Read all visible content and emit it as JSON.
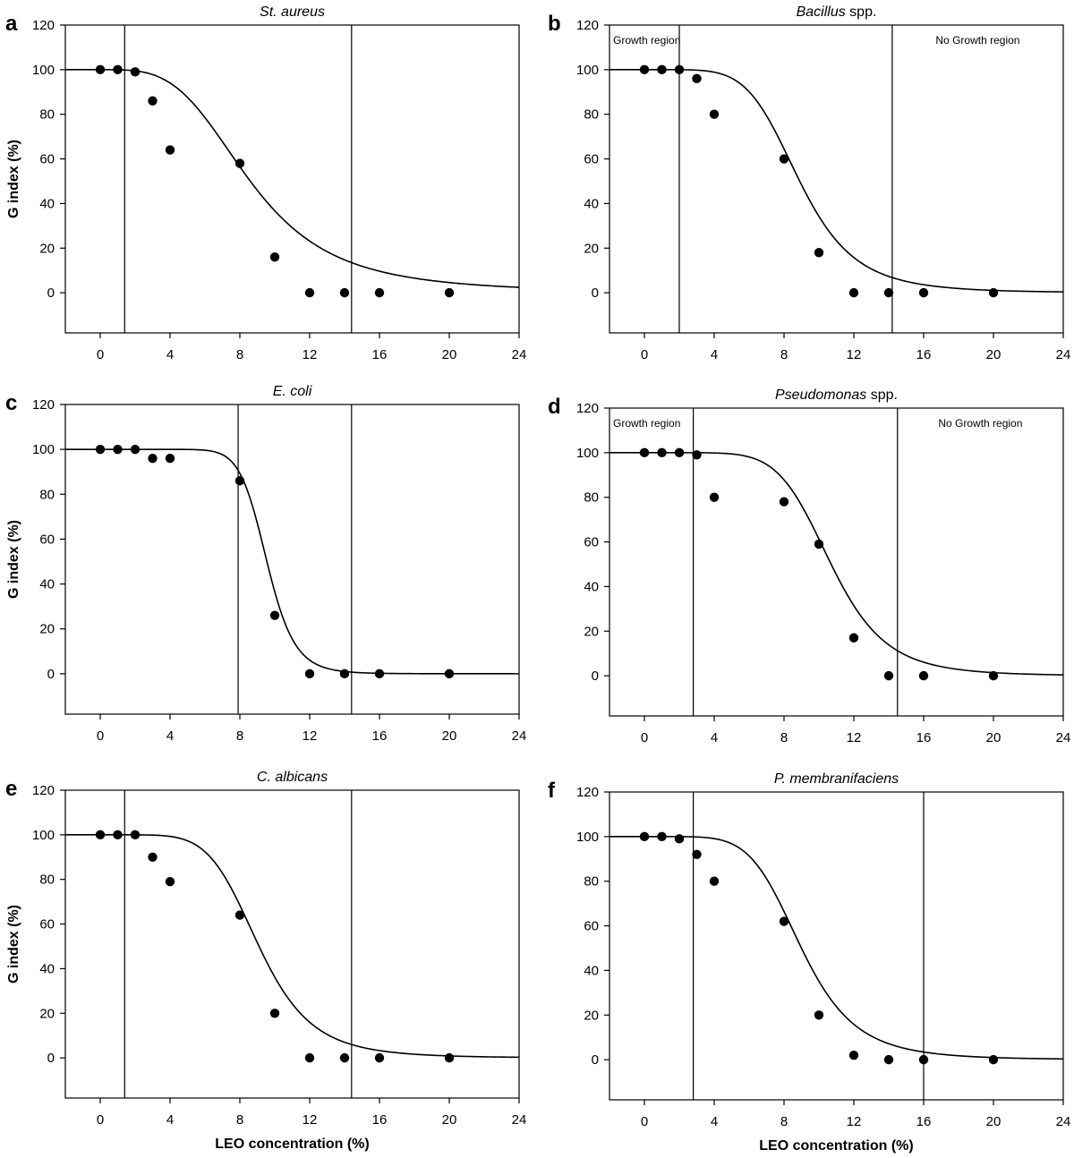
{
  "figure": {
    "panels": [
      {
        "letter": "a",
        "title_parts": [
          {
            "text": "St. aureus",
            "italic": true
          }
        ],
        "ylabel": "G index (%)",
        "xlabel": "",
        "region_left": "",
        "region_right": "",
        "vlines": [
          1.4,
          14.4
        ],
        "curve": {
          "top": 100,
          "x50": 8.6,
          "slope": 3.6
        }
      },
      {
        "letter": "b",
        "title_parts": [
          {
            "text": "Bacillus",
            "italic": true
          },
          {
            "text": " spp.",
            "italic": false
          }
        ],
        "ylabel": "",
        "xlabel": "",
        "region_left": "Growth region",
        "region_right": "No Growth region",
        "vlines": [
          2.0,
          14.2
        ],
        "curve": {
          "top": 100,
          "x50": 8.9,
          "slope": 5.6
        }
      },
      {
        "letter": "c",
        "title_parts": [
          {
            "text": "E. coli",
            "italic": true
          }
        ],
        "ylabel": "G index (%)",
        "xlabel": "",
        "region_left": "",
        "region_right": "",
        "vlines": [
          7.9,
          14.4
        ],
        "curve": {
          "top": 100,
          "x50": 9.55,
          "slope": 12
        }
      },
      {
        "letter": "d",
        "title_parts": [
          {
            "text": "Pseudomonas",
            "italic": true
          },
          {
            "text": " spp.",
            "italic": false
          }
        ],
        "ylabel": "",
        "xlabel": "",
        "region_left": "Growth region",
        "region_right": "No Growth region",
        "vlines": [
          2.8,
          14.5
        ],
        "curve": {
          "top": 100,
          "x50": 10.7,
          "slope": 6.8
        }
      },
      {
        "letter": "e",
        "title_parts": [
          {
            "text": "C. albicans",
            "italic": true
          }
        ],
        "ylabel": "G index (%)",
        "xlabel": "LEO concentration (%)",
        "region_left": "",
        "region_right": "",
        "vlines": [
          1.4,
          14.4
        ],
        "curve": {
          "top": 100,
          "x50": 9.1,
          "slope": 6
        }
      },
      {
        "letter": "f",
        "title_parts": [
          {
            "text": "P. membranifaciens",
            "italic": true
          }
        ],
        "ylabel": "",
        "xlabel": "LEO concentration (%)",
        "region_left": "",
        "region_right": "",
        "vlines": [
          2.8,
          16.0
        ],
        "curve": {
          "top": 100,
          "x50": 9.0,
          "slope": 5.8
        }
      }
    ]
  },
  "chart_data": [
    {
      "type": "scatter",
      "title": "St. aureus",
      "xlabel": "",
      "ylabel": "G index (%)",
      "xlim": [
        -2,
        24
      ],
      "ylim": [
        -18,
        120
      ],
      "xticks": [
        0,
        4,
        8,
        12,
        16,
        20,
        24
      ],
      "yticks": [
        0,
        20,
        40,
        60,
        80,
        100,
        120
      ],
      "x": [
        0,
        1,
        2,
        3,
        4,
        8,
        10,
        12,
        14,
        16,
        20
      ],
      "y": [
        100,
        100,
        99,
        86,
        64,
        58,
        16,
        0,
        0,
        0,
        0
      ],
      "grid": false
    },
    {
      "type": "scatter",
      "title": "Bacillus spp.",
      "xlabel": "",
      "ylabel": "",
      "xlim": [
        -2,
        24
      ],
      "ylim": [
        -18,
        120
      ],
      "xticks": [
        0,
        4,
        8,
        12,
        16,
        20,
        24
      ],
      "yticks": [
        0,
        20,
        40,
        60,
        80,
        100,
        120
      ],
      "x": [
        0,
        1,
        2,
        3,
        4,
        8,
        10,
        12,
        14,
        16,
        20
      ],
      "y": [
        100,
        100,
        100,
        96,
        80,
        60,
        18,
        0,
        0,
        0,
        0
      ],
      "grid": false
    },
    {
      "type": "scatter",
      "title": "E. coli",
      "xlabel": "",
      "ylabel": "G index (%)",
      "xlim": [
        -2,
        24
      ],
      "ylim": [
        -18,
        120
      ],
      "xticks": [
        0,
        4,
        8,
        12,
        16,
        20,
        24
      ],
      "yticks": [
        0,
        20,
        40,
        60,
        80,
        100,
        120
      ],
      "x": [
        0,
        1,
        2,
        3,
        4,
        8,
        10,
        12,
        14,
        16,
        20
      ],
      "y": [
        100,
        100,
        100,
        96,
        96,
        86,
        26,
        0,
        0,
        0,
        0
      ],
      "grid": false
    },
    {
      "type": "scatter",
      "title": "Pseudomonas spp.",
      "xlabel": "",
      "ylabel": "",
      "xlim": [
        -2,
        24
      ],
      "ylim": [
        -18,
        120
      ],
      "xticks": [
        0,
        4,
        8,
        12,
        16,
        20,
        24
      ],
      "yticks": [
        0,
        20,
        40,
        60,
        80,
        100,
        120
      ],
      "x": [
        0,
        1,
        2,
        3,
        4,
        8,
        10,
        12,
        14,
        16,
        20
      ],
      "y": [
        100,
        100,
        100,
        99,
        80,
        78,
        59,
        17,
        0,
        0,
        0
      ],
      "grid": false
    },
    {
      "type": "scatter",
      "title": "C. albicans",
      "xlabel": "LEO concentration (%)",
      "ylabel": "G index (%)",
      "xlim": [
        -2,
        24
      ],
      "ylim": [
        -18,
        120
      ],
      "xticks": [
        0,
        4,
        8,
        12,
        16,
        20,
        24
      ],
      "yticks": [
        0,
        20,
        40,
        60,
        80,
        100,
        120
      ],
      "x": [
        0,
        1,
        2,
        3,
        4,
        8,
        10,
        12,
        14,
        16,
        20
      ],
      "y": [
        100,
        100,
        100,
        90,
        79,
        64,
        20,
        0,
        0,
        0,
        0
      ],
      "grid": false
    },
    {
      "type": "scatter",
      "title": "P. membranifaciens",
      "xlabel": "LEO concentration (%)",
      "ylabel": "",
      "xlim": [
        -2,
        24
      ],
      "ylim": [
        -18,
        120
      ],
      "xticks": [
        0,
        4,
        8,
        12,
        16,
        20,
        24
      ],
      "yticks": [
        0,
        20,
        40,
        60,
        80,
        100,
        120
      ],
      "x": [
        0,
        1,
        2,
        3,
        4,
        8,
        10,
        12,
        14,
        16,
        20
      ],
      "y": [
        100,
        100,
        99,
        92,
        80,
        62,
        20,
        2,
        0,
        0,
        0
      ],
      "grid": false
    }
  ]
}
